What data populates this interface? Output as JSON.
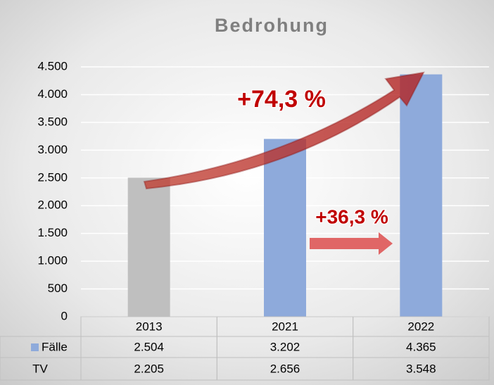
{
  "chart_data": {
    "type": "bar",
    "title": "Bedrohung",
    "categories": [
      "2013",
      "2021",
      "2022"
    ],
    "series": [
      {
        "name": "Fälle",
        "color": "#8eaadb",
        "point_colors": [
          "#bfbfbf",
          "#8eaadb",
          "#8eaadb"
        ],
        "values": [
          2504,
          3202,
          4365
        ],
        "value_labels": [
          "2.504",
          "3.202",
          "4.365"
        ]
      },
      {
        "name": "TV",
        "values": [
          2205,
          2656,
          3548
        ],
        "value_labels": [
          "2.205",
          "2.656",
          "3.548"
        ]
      }
    ],
    "ylim": [
      0,
      4500
    ],
    "yticks": [
      0,
      500,
      {
        "value": 1000,
        "label": "1.000"
      },
      {
        "value": 1500,
        "label": "1.500"
      },
      {
        "value": 2000,
        "label": "2.000"
      },
      {
        "value": 2500,
        "label": "2.500"
      },
      {
        "value": 3000,
        "label": "3.000"
      },
      {
        "value": 3500,
        "label": "3.500"
      },
      {
        "value": 4000,
        "label": "4.000"
      },
      {
        "value": 4500,
        "label": "4.500"
      }
    ],
    "grid": true,
    "annotations": [
      "+74,3 %",
      "+36,3 %"
    ]
  }
}
